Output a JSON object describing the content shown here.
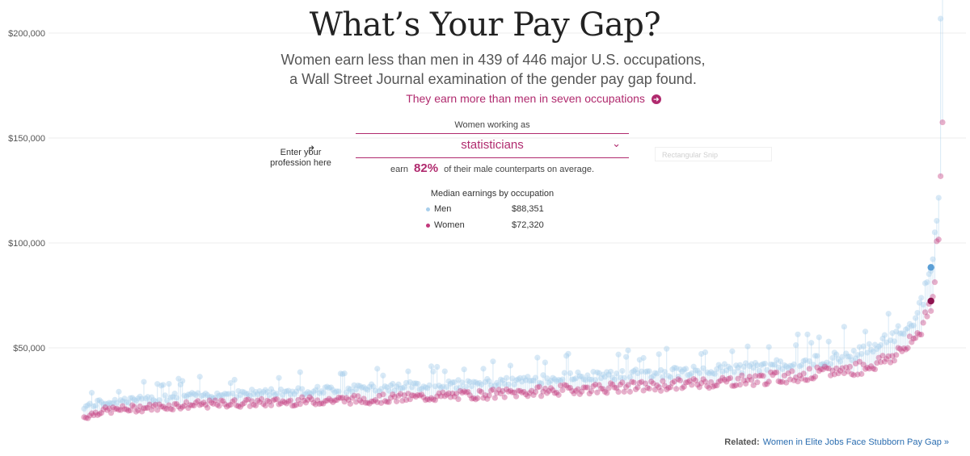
{
  "header": {
    "title": "What’s Your Pay Gap?",
    "subtitle_line1": "Women earn less than men in 439 of 446 major U.S. occupations,",
    "subtitle_line2": "a Wall Street Journal examination of the gender pay gap found.",
    "more_link": "They earn more than men in seven occupations",
    "more_icon": "arrow-right-circle-icon"
  },
  "selector": {
    "label": "Women working as",
    "value": "statisticians",
    "earn_prefix": "earn",
    "earn_percent": "82%",
    "earn_suffix": "of their male counterparts on average.",
    "hint": "Enter your profession here",
    "hint_icon": "curved-arrow-icon"
  },
  "ghost_chip": {
    "label": "Rectangular Snip"
  },
  "median": {
    "title": "Median earnings by occupation",
    "men_label": "Men",
    "men_value": "$88,351",
    "women_label": "Women",
    "women_value": "$72,320"
  },
  "related": {
    "label": "Related:",
    "link": "Women in Elite Jobs Face Stubborn Pay Gap »"
  },
  "colors": {
    "men": "#a9cfec",
    "women": "#c2397c",
    "accent": "#b02a6e",
    "link": "#2a6db0"
  },
  "chart_data": {
    "type": "scatter",
    "title": "Median earnings by occupation",
    "xlabel": "",
    "ylabel": "",
    "ylim": [
      10000,
      210000
    ],
    "y_ticks": [
      50000,
      100000,
      150000,
      200000
    ],
    "y_tick_labels": [
      "$50,000",
      "$100,000",
      "$150,000",
      "$200,000"
    ],
    "x_count": 446,
    "series": [
      {
        "name": "Men",
        "sampled_rank": [
          1,
          10,
          25,
          50,
          75,
          100,
          125,
          150,
          175,
          200,
          225,
          250,
          275,
          300,
          325,
          350,
          375,
          400,
          410,
          420,
          430,
          435,
          440,
          442,
          444,
          446
        ],
        "values": [
          22000,
          24000,
          25000,
          27000,
          28000,
          29000,
          30000,
          31000,
          32000,
          33000,
          34000,
          36000,
          37000,
          38000,
          39500,
          41000,
          43000,
          47000,
          50000,
          55000,
          62000,
          70000,
          88351,
          100000,
          120000,
          210000
        ]
      },
      {
        "name": "Women",
        "sampled_rank": [
          1,
          10,
          25,
          50,
          75,
          100,
          125,
          150,
          175,
          200,
          225,
          250,
          275,
          300,
          325,
          350,
          375,
          400,
          410,
          420,
          430,
          435,
          440,
          442,
          444,
          446
        ],
        "values": [
          17000,
          20000,
          21000,
          22500,
          23500,
          24000,
          25000,
          25500,
          26500,
          27500,
          28500,
          30000,
          31000,
          32000,
          33500,
          35000,
          37000,
          40000,
          42000,
          46000,
          52000,
          60000,
          72320,
          85000,
          110000,
          150000
        ]
      }
    ],
    "highlight": {
      "occupation": "statisticians",
      "men": 88351,
      "women": 72320
    }
  }
}
